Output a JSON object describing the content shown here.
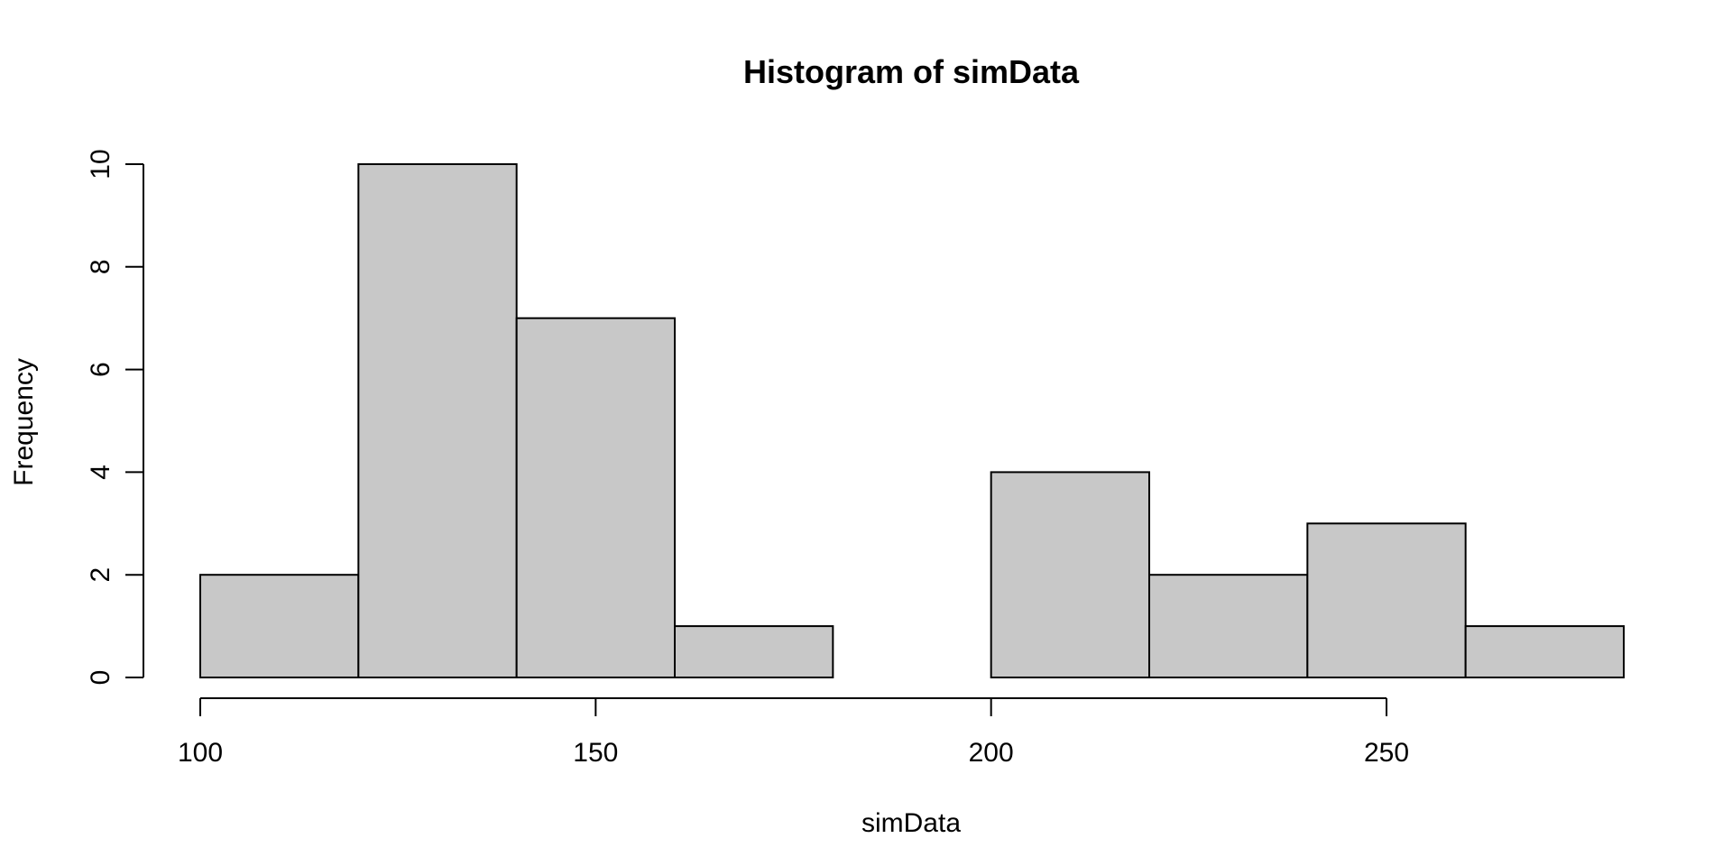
{
  "chart_data": {
    "type": "bar",
    "title": "Histogram of simData",
    "xlabel": "simData",
    "ylabel": "Frequency",
    "bins": [
      {
        "x0": 100,
        "x1": 120,
        "count": 2
      },
      {
        "x0": 120,
        "x1": 140,
        "count": 10
      },
      {
        "x0": 140,
        "x1": 160,
        "count": 7
      },
      {
        "x0": 160,
        "x1": 180,
        "count": 1
      },
      {
        "x0": 180,
        "x1": 200,
        "count": 0
      },
      {
        "x0": 200,
        "x1": 220,
        "count": 4
      },
      {
        "x0": 220,
        "x1": 240,
        "count": 2
      },
      {
        "x0": 240,
        "x1": 260,
        "count": 3
      },
      {
        "x0": 260,
        "x1": 280,
        "count": 1
      }
    ],
    "xticks": [
      100,
      150,
      200,
      250
    ],
    "yticks": [
      0,
      2,
      4,
      6,
      8,
      10
    ],
    "xlim": [
      100,
      280
    ],
    "ylim": [
      0,
      10
    ],
    "grid": false,
    "bar_fill": "#c8c8c8",
    "bar_stroke": "#000000"
  }
}
